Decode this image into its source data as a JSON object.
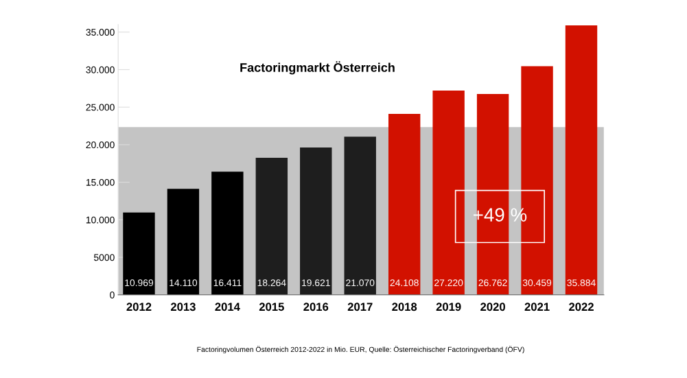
{
  "chart_data": {
    "type": "bar",
    "title": "Factoringmarkt Österreich",
    "categories": [
      "2012",
      "2013",
      "2014",
      "2015",
      "2016",
      "2017",
      "2018",
      "2019",
      "2020",
      "2021",
      "2022"
    ],
    "values": [
      10969,
      14110,
      16411,
      18264,
      19621,
      21070,
      24108,
      27220,
      26762,
      30459,
      35884
    ],
    "colors": [
      "#000000",
      "#000000",
      "#000000",
      "#1e1e1e",
      "#1e1e1e",
      "#1e1e1e",
      "#d21100",
      "#d21100",
      "#d21100",
      "#d21100",
      "#d21100"
    ],
    "value_labels": [
      "10.969",
      "14.110",
      "16.411",
      "18.264",
      "19.621",
      "21.070",
      "24.108",
      "27.220",
      "26.762",
      "30.459",
      "35.884"
    ],
    "ylim": [
      0,
      36000
    ],
    "yticks": [
      0,
      5000,
      {
        "value": 10000,
        "label": "10.000"
      },
      {
        "value": 15000,
        "label": "15.000"
      },
      {
        "value": 20000,
        "label": "20.000"
      },
      {
        "value": 25000,
        "label": "25.000"
      },
      {
        "value": 30000,
        "label": "30.000"
      },
      {
        "value": 35000,
        "label": "35.000"
      }
    ],
    "bands": [
      {
        "axis": "y",
        "from": 0,
        "to": 22350,
        "color": "#c4c4c4"
      }
    ],
    "annotations": [
      "+49 %",
      "Factoringvolumen Österreich 2012-2022 in Mio. EUR, Quelle: Österreichischer Factoringverband (ÖFV)"
    ],
    "grid": false,
    "legend": false
  }
}
